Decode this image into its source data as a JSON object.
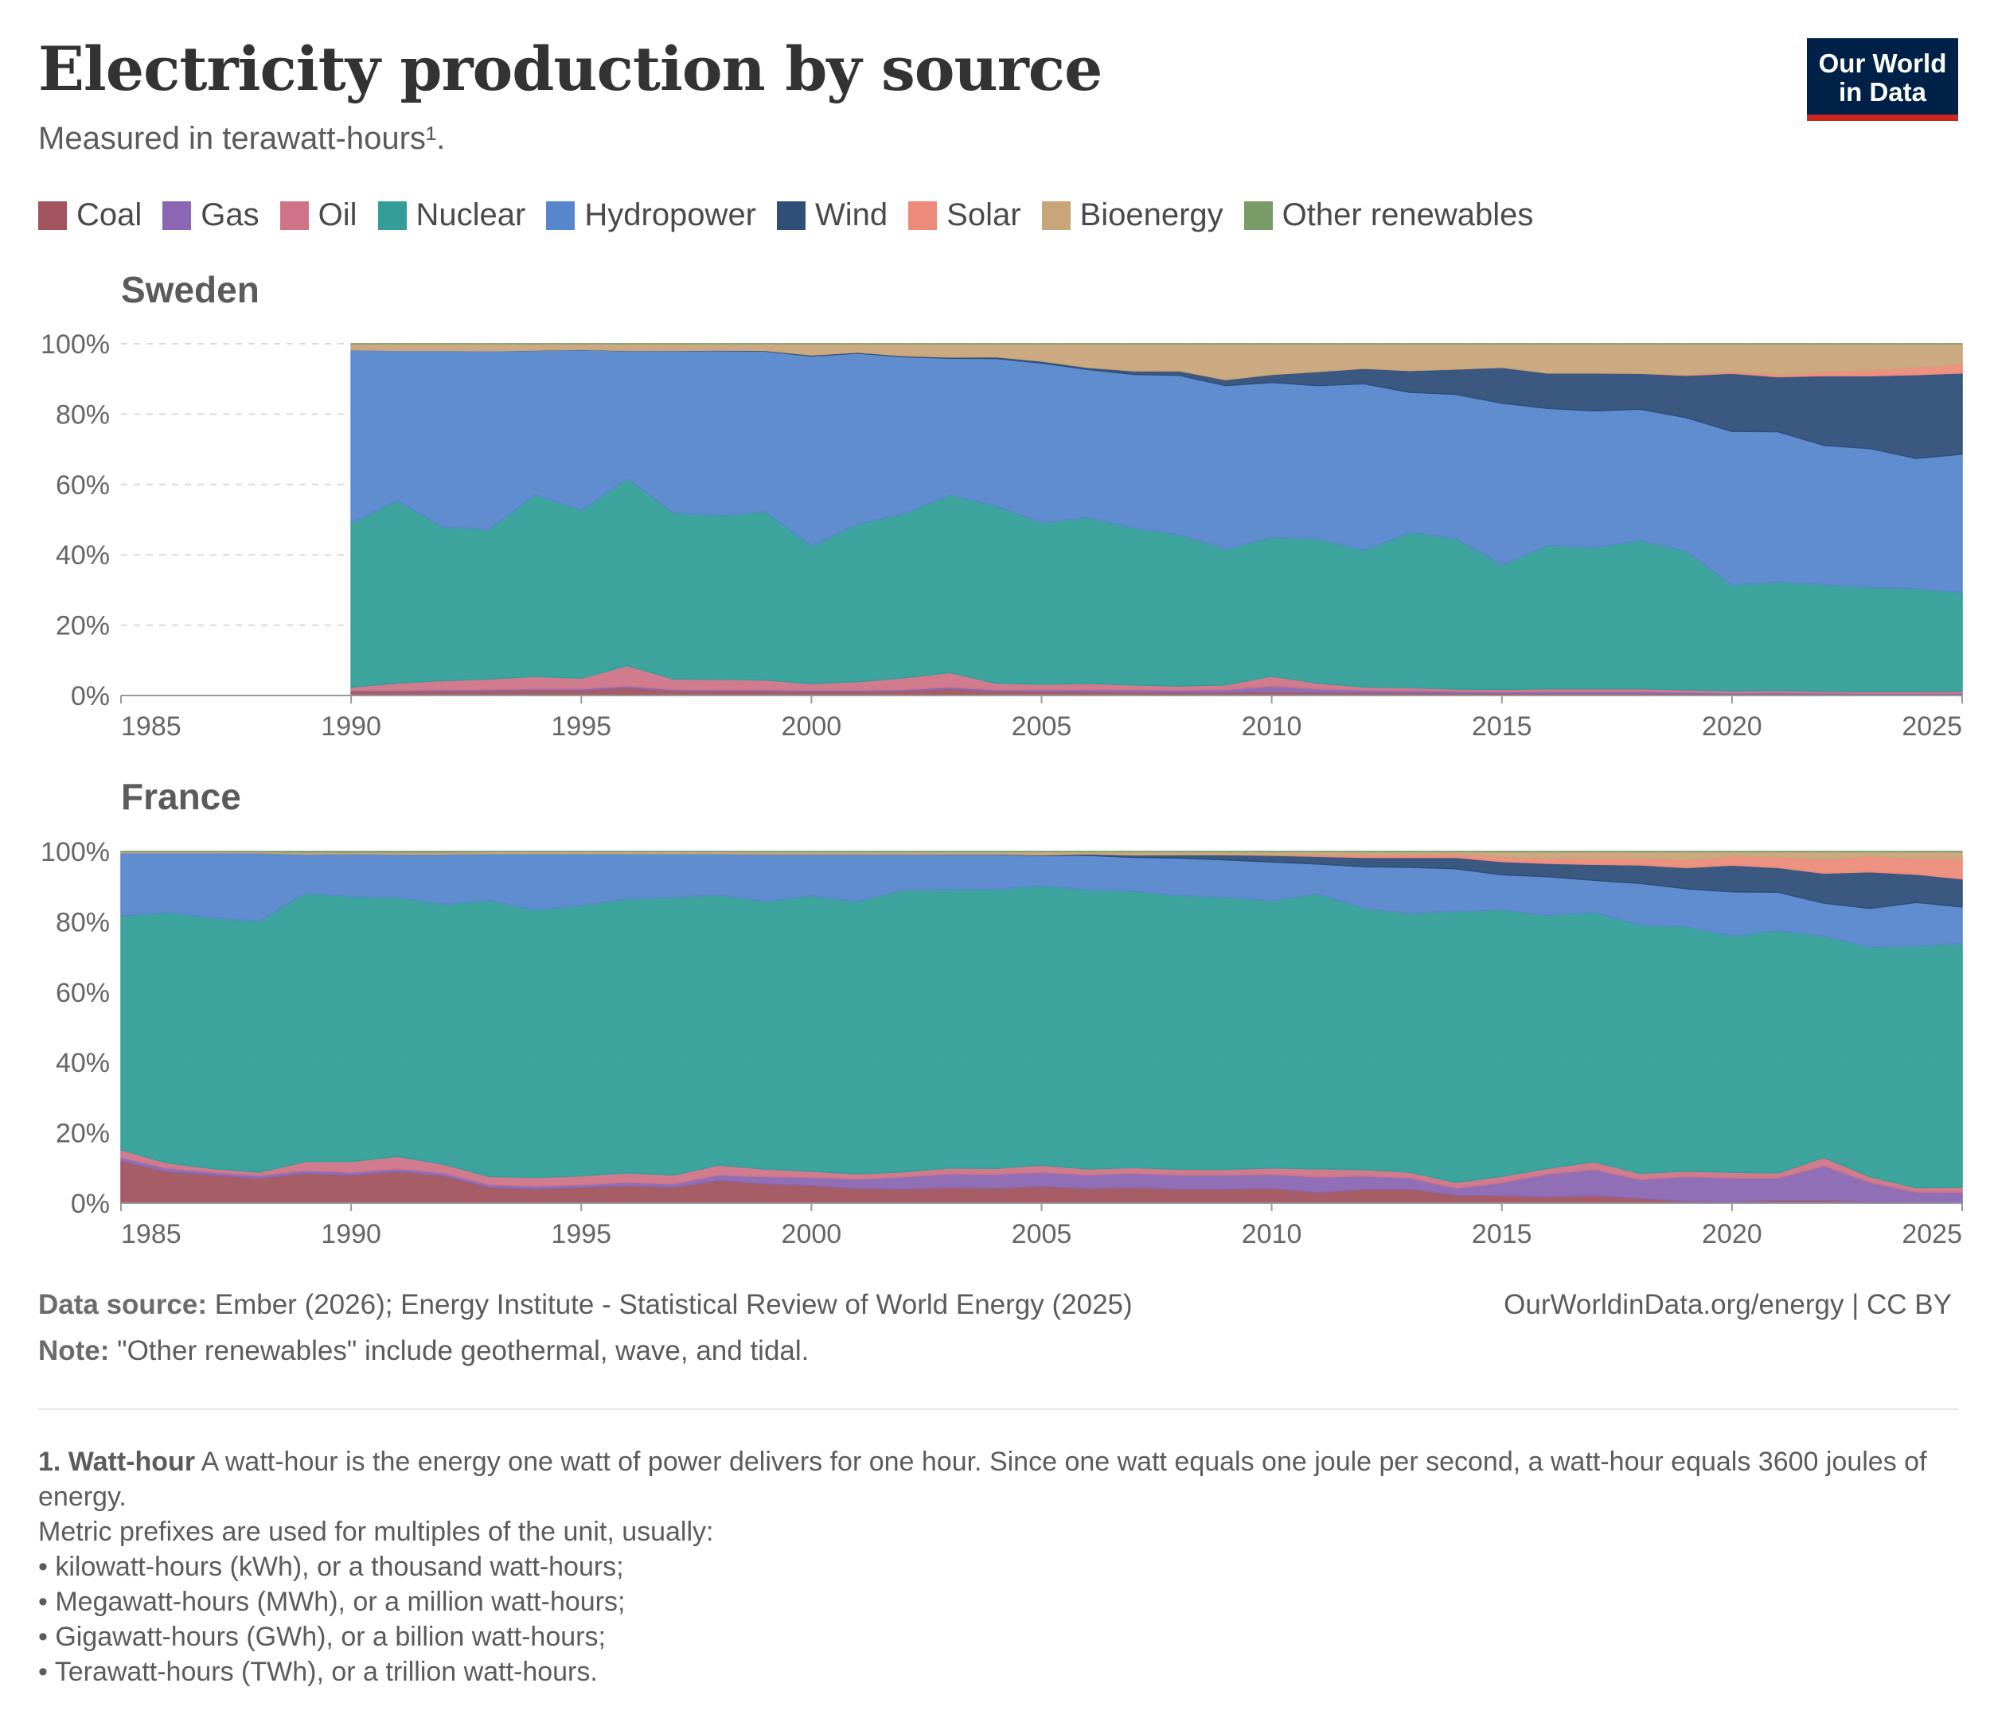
{
  "header": {
    "title": "Electricity production by source",
    "subtitle": "Measured in terawatt-hours¹.",
    "logo_line1": "Our World",
    "logo_line2": "in Data"
  },
  "legend": [
    {
      "label": "Coal",
      "color": "#a2545e"
    },
    {
      "label": "Gas",
      "color": "#8b67b3"
    },
    {
      "label": "Oil",
      "color": "#cf7488"
    },
    {
      "label": "Nuclear",
      "color": "#339e98"
    },
    {
      "label": "Hydropower",
      "color": "#5687cc"
    },
    {
      "label": "Wind",
      "color": "#2f4f79"
    },
    {
      "label": "Solar",
      "color": "#ec8b7a"
    },
    {
      "label": "Bioenergy",
      "color": "#c9a57a"
    },
    {
      "label": "Other renewables",
      "color": "#789c68"
    }
  ],
  "footer": {
    "source_label": "Data source:",
    "source_text": " Ember (2026); Energy Institute - Statistical Review of World Energy (2025)",
    "url": "OurWorldinData.org/energy | CC BY",
    "note_label": "Note:",
    "note_text": " \"Other renewables\" include geothermal, wave, and tidal.",
    "fn_label": "1. Watt-hour",
    "fn_text": " A watt-hour is the energy one watt of power delivers for one hour. Since one watt equals one joule per second, a watt-hour equals 3600 joules of energy.",
    "fn_line2": "Metric prefixes are used for multiples of the unit, usually:",
    "fn_bullets": [
      "• kilowatt-hours (kWh), or a thousand watt-hours;",
      "• Megawatt-hours (MWh), or a million watt-hours;",
      "• Gigawatt-hours (GWh), or a billion watt-hours;",
      "• Terawatt-hours (TWh), or a trillion watt-hours."
    ]
  },
  "chart_data": [
    {
      "type": "area",
      "stacked": "relative",
      "title": "Sweden",
      "xlim": [
        1985,
        2025
      ],
      "ylim": [
        0,
        100
      ],
      "yticks": [
        "0%",
        "20%",
        "40%",
        "60%",
        "80%",
        "100%"
      ],
      "xticks": [
        "1985",
        "1990",
        "1995",
        "2000",
        "2005",
        "2010",
        "2015",
        "2020",
        "2025"
      ],
      "tick_years": [
        1985,
        1990,
        1995,
        2000,
        2005,
        2010,
        2015,
        2020,
        2025
      ],
      "x": [
        1990,
        1991,
        1992,
        1993,
        1994,
        1995,
        1996,
        1997,
        1998,
        1999,
        2000,
        2001,
        2002,
        2003,
        2004,
        2005,
        2006,
        2007,
        2008,
        2009,
        2010,
        2011,
        2012,
        2013,
        2014,
        2015,
        2016,
        2017,
        2018,
        2019,
        2020,
        2021,
        2022,
        2023,
        2024,
        2025
      ],
      "series": [
        {
          "name": "Coal",
          "values": [
            1.2,
            1.3,
            1.3,
            1.4,
            1.5,
            1.5,
            2.2,
            1.4,
            1.3,
            1.3,
            1.1,
            1.1,
            1.3,
            1.9,
            1.2,
            1.1,
            1.1,
            1.0,
            0.9,
            0.9,
            1.1,
            0.9,
            0.8,
            0.8,
            0.7,
            0.6,
            0.6,
            0.6,
            0.6,
            0.5,
            0.4,
            0.5,
            0.4,
            0.4,
            0.4,
            0.4
          ]
        },
        {
          "name": "Gas",
          "values": [
            0.2,
            0.2,
            0.3,
            0.3,
            0.4,
            0.4,
            0.5,
            0.3,
            0.3,
            0.3,
            0.4,
            0.4,
            0.4,
            0.5,
            0.5,
            0.5,
            0.6,
            0.6,
            0.6,
            0.8,
            1.6,
            1.0,
            0.7,
            0.6,
            0.5,
            0.4,
            0.5,
            0.5,
            0.5,
            0.4,
            0.3,
            0.3,
            0.3,
            0.2,
            0.2,
            0.2
          ]
        },
        {
          "name": "Oil",
          "values": [
            1.0,
            2.0,
            2.6,
            3.0,
            3.5,
            3.0,
            5.8,
            3.0,
            3.0,
            2.8,
            1.9,
            2.4,
            3.3,
            4.1,
            1.9,
            1.6,
            1.7,
            1.4,
            1.2,
            1.3,
            2.8,
            1.6,
            0.9,
            0.8,
            0.6,
            0.7,
            0.8,
            0.8,
            0.8,
            0.7,
            0.6,
            0.6,
            0.5,
            0.5,
            0.5,
            0.6
          ]
        },
        {
          "name": "Nuclear",
          "values": [
            46.6,
            51.9,
            43.6,
            42.5,
            51.7,
            47.7,
            53.2,
            47.3,
            46.5,
            47.8,
            39.1,
            44.8,
            46.7,
            50.3,
            51.7,
            45.9,
            47.2,
            44.6,
            43.0,
            38.6,
            39.5,
            41.0,
            38.9,
            44.2,
            42.8,
            35.4,
            40.8,
            40.1,
            42.2,
            39.4,
            30.1,
            30.9,
            30.3,
            29.6,
            29.3,
            28.0
          ]
        },
        {
          "name": "Hydropower",
          "values": [
            49.3,
            42.6,
            50.3,
            50.8,
            41.0,
            45.7,
            36.3,
            46.0,
            46.9,
            45.7,
            54.0,
            48.6,
            44.6,
            38.8,
            42.9,
            45.4,
            42.1,
            43.7,
            45.3,
            46.5,
            44.0,
            43.6,
            47.5,
            39.8,
            41.0,
            46.0,
            38.9,
            38.9,
            37.3,
            38.0,
            43.7,
            42.7,
            39.6,
            39.5,
            37.0,
            39.4
          ]
        },
        {
          "name": "Wind",
          "values": [
            0.0,
            0.0,
            0.0,
            0.0,
            0.1,
            0.1,
            0.1,
            0.1,
            0.2,
            0.2,
            0.3,
            0.3,
            0.3,
            0.3,
            0.5,
            0.6,
            0.6,
            1.0,
            1.3,
            1.7,
            2.3,
            4.0,
            4.4,
            6.2,
            7.2,
            10.2,
            10.1,
            10.8,
            10.2,
            12.0,
            16.5,
            15.6,
            19.8,
            20.7,
            23.8,
            23.1
          ]
        },
        {
          "name": "Solar",
          "values": [
            0,
            0,
            0,
            0,
            0,
            0,
            0,
            0,
            0,
            0,
            0,
            0,
            0,
            0,
            0,
            0,
            0,
            0,
            0,
            0,
            0,
            0,
            0,
            0,
            0,
            0,
            0,
            0,
            0,
            0.2,
            0.5,
            0.7,
            1.1,
            1.6,
            2.1,
            2.4
          ]
        },
        {
          "name": "Bioenergy",
          "values": [
            1.7,
            1.9,
            1.9,
            2.0,
            1.8,
            1.6,
            1.9,
            1.9,
            1.8,
            1.9,
            3.2,
            2.4,
            3.4,
            3.8,
            3.8,
            4.9,
            6.7,
            7.7,
            7.7,
            10.2,
            8.7,
            7.9,
            7.0,
            7.6,
            7.2,
            6.7,
            8.3,
            8.3,
            8.4,
            8.8,
            7.9,
            8.7,
            8.0,
            7.5,
            6.7,
            5.9
          ]
        },
        {
          "name": "Other renewables",
          "values": [
            0,
            0,
            0,
            0,
            0,
            0,
            0,
            0,
            0,
            0,
            0,
            0,
            0,
            0,
            0,
            0,
            0,
            0,
            0,
            0,
            0,
            0,
            0,
            0,
            0,
            0,
            0,
            0,
            0,
            0,
            0,
            0,
            0,
            0,
            0,
            0
          ]
        }
      ]
    },
    {
      "type": "area",
      "stacked": "relative",
      "title": "France",
      "xlim": [
        1985,
        2025
      ],
      "ylim": [
        0,
        100
      ],
      "yticks": [
        "0%",
        "20%",
        "40%",
        "60%",
        "80%",
        "100%"
      ],
      "xticks": [
        "1985",
        "1990",
        "1995",
        "2000",
        "2005",
        "2010",
        "2015",
        "2020",
        "2025"
      ],
      "tick_years": [
        1985,
        1990,
        1995,
        2000,
        2005,
        2010,
        2015,
        2020,
        2025
      ],
      "x": [
        1985,
        1986,
        1987,
        1988,
        1989,
        1990,
        1991,
        1992,
        1993,
        1994,
        1995,
        1996,
        1997,
        1998,
        1999,
        2000,
        2001,
        2002,
        2003,
        2004,
        2005,
        2006,
        2007,
        2008,
        2009,
        2010,
        2011,
        2012,
        2013,
        2014,
        2015,
        2016,
        2017,
        2018,
        2019,
        2020,
        2021,
        2022,
        2023,
        2024,
        2025
      ],
      "series": [
        {
          "name": "Coal",
          "values": [
            12.0,
            9.0,
            8.0,
            7.0,
            8.5,
            8.0,
            9.0,
            7.8,
            4.5,
            4.0,
            4.5,
            5.0,
            4.5,
            6.5,
            5.5,
            5.0,
            4.2,
            4.0,
            4.5,
            4.2,
            4.8,
            4.2,
            4.5,
            4.0,
            4.0,
            4.2,
            3.0,
            4.0,
            4.0,
            2.3,
            2.2,
            1.8,
            2.2,
            1.4,
            0.5,
            0.4,
            0.8,
            0.8,
            0.4,
            0.2,
            0.1
          ]
        },
        {
          "name": "Gas",
          "values": [
            1.0,
            1.0,
            0.8,
            0.8,
            0.8,
            0.8,
            0.8,
            0.8,
            0.8,
            0.8,
            0.8,
            0.9,
            1.0,
            1.5,
            2.0,
            2.3,
            2.6,
            3.5,
            3.8,
            4.0,
            4.0,
            3.8,
            4.0,
            4.0,
            4.0,
            4.0,
            4.5,
            3.8,
            3.2,
            2.0,
            3.7,
            6.5,
            7.5,
            5.4,
            7.2,
            6.8,
            6.4,
            9.8,
            5.5,
            3.0,
            3.0
          ]
        },
        {
          "name": "Oil",
          "values": [
            2.2,
            1.5,
            1.0,
            1.0,
            2.5,
            3.0,
            3.5,
            2.5,
            2.3,
            2.5,
            2.5,
            2.7,
            2.5,
            2.8,
            2.2,
            1.7,
            1.5,
            1.4,
            1.7,
            1.7,
            2.0,
            1.7,
            1.6,
            1.6,
            1.6,
            1.8,
            2.3,
            1.8,
            1.6,
            1.6,
            1.8,
            1.6,
            2.2,
            1.8,
            1.6,
            1.6,
            1.4,
            2.4,
            1.6,
            1.2,
            1.4
          ]
        },
        {
          "name": "Nuclear",
          "values": [
            66.5,
            71.5,
            71.2,
            71.2,
            76.4,
            75.3,
            73.7,
            73.9,
            78.7,
            76.2,
            77.0,
            77.9,
            79.0,
            76.5,
            76.0,
            77.7,
            77.3,
            79.9,
            79.1,
            79.2,
            79.3,
            79.2,
            78.4,
            77.6,
            77.4,
            75.9,
            78.6,
            74.9,
            73.6,
            77.1,
            76.4,
            71.9,
            71.8,
            71.5,
            70.9,
            67.2,
            68.9,
            62.8,
            65.3,
            68.7,
            69.3
          ]
        },
        {
          "name": "Hydropower",
          "values": [
            18.0,
            17.0,
            18.5,
            19.5,
            11.1,
            12.3,
            12.3,
            14.3,
            13.3,
            16.1,
            14.7,
            12.9,
            12.4,
            11.8,
            13.5,
            11.8,
            13.5,
            10.3,
            10.0,
            9.9,
            8.5,
            9.8,
            9.6,
            10.7,
            10.6,
            11.1,
            8.5,
            11.9,
            13.1,
            12.1,
            10.0,
            11.0,
            9.2,
            12.0,
            11.0,
            12.5,
            10.9,
            9.4,
            11.0,
            12.4,
            10.4
          ]
        },
        {
          "name": "Wind",
          "values": [
            0,
            0,
            0,
            0,
            0,
            0,
            0,
            0,
            0,
            0,
            0,
            0,
            0,
            0,
            0,
            0,
            0,
            0,
            0.1,
            0.1,
            0.2,
            0.4,
            0.7,
            1.0,
            1.5,
            1.9,
            2.2,
            2.7,
            2.8,
            3.2,
            3.8,
            3.8,
            4.6,
            5.3,
            6.1,
            7.6,
            7.0,
            8.5,
            10.4,
            8.0,
            8.0
          ]
        },
        {
          "name": "Solar",
          "values": [
            0,
            0,
            0,
            0,
            0,
            0,
            0,
            0,
            0,
            0,
            0,
            0,
            0,
            0,
            0,
            0,
            0,
            0,
            0,
            0,
            0,
            0,
            0,
            0,
            0,
            0.1,
            0.4,
            0.7,
            0.8,
            1.1,
            1.3,
            1.5,
            1.7,
            1.9,
            2.1,
            2.6,
            3.0,
            3.8,
            4.5,
            4.5,
            5.8
          ]
        },
        {
          "name": "Bioenergy",
          "values": [
            0.3,
            0.3,
            0.3,
            0.3,
            0.5,
            0.4,
            0.5,
            0.5,
            0.5,
            0.5,
            0.5,
            0.5,
            0.5,
            0.5,
            0.6,
            0.6,
            0.6,
            0.6,
            0.6,
            0.6,
            0.9,
            0.6,
            0.9,
            0.8,
            0.8,
            0.9,
            0.9,
            0.9,
            0.8,
            0.5,
            1.5,
            1.8,
            1.9,
            1.9,
            2.5,
            1.2,
            1.5,
            2.3,
            1.2,
            1.9,
            1.9
          ]
        },
        {
          "name": "Other renewables",
          "values": [
            0.1,
            0.1,
            0.1,
            0.1,
            0.2,
            0.2,
            0.2,
            0.2,
            0.1,
            0.1,
            0.1,
            0.1,
            0.1,
            0.1,
            0.1,
            0.1,
            0.1,
            0.1,
            0.1,
            0.1,
            0.1,
            0.1,
            0.1,
            0.1,
            0.1,
            0.1,
            0.1,
            0.1,
            0.1,
            0.1,
            0.1,
            0.1,
            0.1,
            0.1,
            0.1,
            0.1,
            0.1,
            0.1,
            0.1,
            0.1,
            0.1
          ]
        }
      ]
    }
  ]
}
